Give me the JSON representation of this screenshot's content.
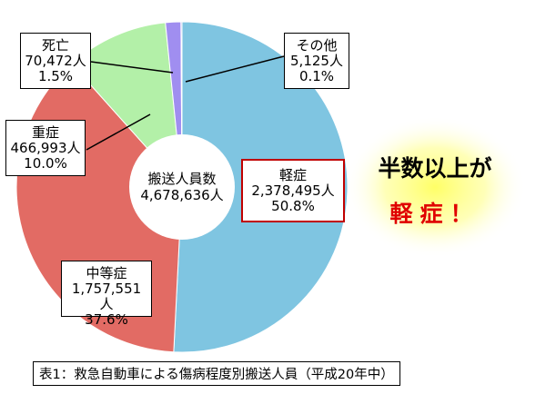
{
  "chart_data": {
    "type": "pie",
    "center_label": "搬送人員数",
    "total_text": "4,678,636人",
    "slices": [
      {
        "label": "軽症",
        "count_text": "2,378,495人",
        "pct_text": "50.8%",
        "value": 50.8,
        "color": "#7fc5e1"
      },
      {
        "label": "中等症",
        "count_text": "1,757,551人",
        "pct_text": "37.6%",
        "value": 37.6,
        "color": "#e26b64"
      },
      {
        "label": "重症",
        "count_text": "466,993人",
        "pct_text": "10.0%",
        "value": 10.0,
        "color": "#b3f0a8"
      },
      {
        "label": "死亡",
        "count_text": "70,472人",
        "pct_text": "1.5%",
        "value": 1.5,
        "color": "#a08ef0"
      },
      {
        "label": "その他",
        "count_text": "5,125人",
        "pct_text": "0.1%",
        "value": 0.1,
        "color": "#4a4fd0"
      }
    ]
  },
  "headline": {
    "line1": "半数以上が",
    "line2": "軽症！"
  },
  "caption": "表1：救急自動車による傷病程度別搬送人員（平成20年中）"
}
